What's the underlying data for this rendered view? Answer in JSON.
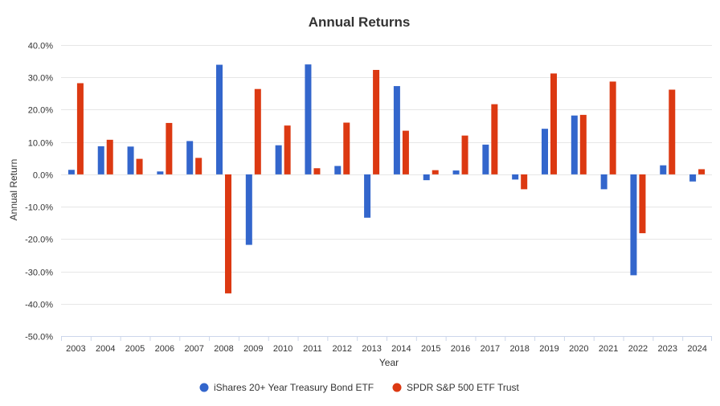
{
  "chart_data": {
    "type": "bar",
    "title": "Annual Returns",
    "xlabel": "Year",
    "ylabel": "Annual Return",
    "ylim": [
      -50,
      40
    ],
    "ytick_step": 10,
    "y_tick_labels": [
      "40.0%",
      "30.0%",
      "20.0%",
      "10.0%",
      "0.0%",
      "-10.0%",
      "-20.0%",
      "-30.0%",
      "-40.0%",
      "-50.0%"
    ],
    "grid": true,
    "legend_position": "bottom-center",
    "categories": [
      "2003",
      "2004",
      "2005",
      "2006",
      "2007",
      "2008",
      "2009",
      "2010",
      "2011",
      "2012",
      "2013",
      "2014",
      "2015",
      "2016",
      "2017",
      "2018",
      "2019",
      "2020",
      "2021",
      "2022",
      "2023",
      "2024"
    ],
    "series": [
      {
        "name": "iShares 20+ Year Treasury Bond ETF",
        "color": "#3366cc",
        "values": [
          1.4,
          8.7,
          8.6,
          0.9,
          10.3,
          33.9,
          -21.8,
          9.0,
          34.0,
          2.6,
          -13.4,
          27.3,
          -1.8,
          1.2,
          9.2,
          -1.6,
          14.1,
          18.2,
          -4.6,
          -31.2,
          2.8,
          -2.2
        ]
      },
      {
        "name": "SPDR S&P 500 ETF Trust",
        "color": "#dc3912",
        "values": [
          28.2,
          10.7,
          4.8,
          15.9,
          5.1,
          -36.8,
          26.4,
          15.1,
          1.9,
          16.0,
          32.3,
          13.5,
          1.3,
          12.0,
          21.7,
          -4.6,
          31.2,
          18.4,
          28.7,
          -18.2,
          26.2,
          1.6
        ]
      }
    ]
  }
}
